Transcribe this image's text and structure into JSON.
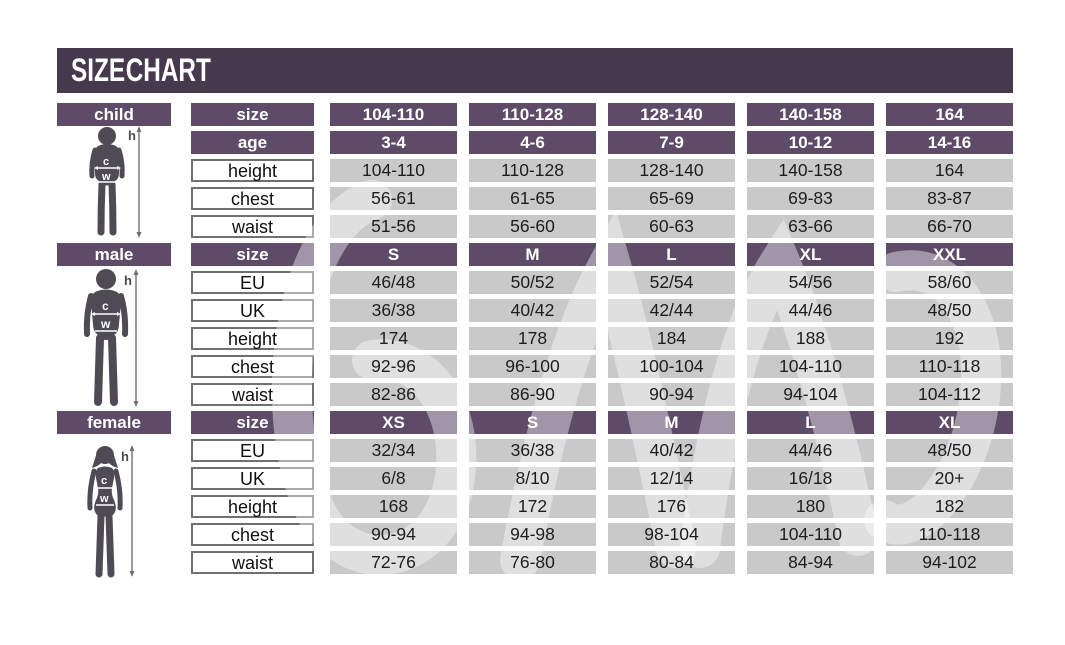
{
  "page_title": "SIZE CHART",
  "colors": {
    "title_bar": "#46394e",
    "header_purple": "#5e4b68",
    "value_cell_gray": "#c9c9c9",
    "label_border_gray": "#6f6f6f",
    "figure_gray": "#4f4b55",
    "background": "#ffffff"
  },
  "measure_marks": {
    "height": "h",
    "chest": "c",
    "waist": "w"
  },
  "sections": [
    {
      "label": "child",
      "rows": [
        {
          "label": "size",
          "header": true,
          "values": [
            "104-110",
            "110-128",
            "128-140",
            "140-158",
            "164"
          ]
        },
        {
          "label": "age",
          "header": true,
          "values": [
            "3-4",
            "4-6",
            "7-9",
            "10-12",
            "14-16"
          ]
        },
        {
          "label": "height",
          "header": false,
          "values": [
            "104-110",
            "110-128",
            "128-140",
            "140-158",
            "164"
          ]
        },
        {
          "label": "chest",
          "header": false,
          "values": [
            "56-61",
            "61-65",
            "65-69",
            "69-83",
            "83-87"
          ]
        },
        {
          "label": "waist",
          "header": false,
          "values": [
            "51-56",
            "56-60",
            "60-63",
            "63-66",
            "66-70"
          ]
        }
      ]
    },
    {
      "label": "male",
      "rows": [
        {
          "label": "size",
          "header": true,
          "values": [
            "S",
            "M",
            "L",
            "XL",
            "XXL"
          ]
        },
        {
          "label": "EU",
          "header": false,
          "values": [
            "46/48",
            "50/52",
            "52/54",
            "54/56",
            "58/60"
          ]
        },
        {
          "label": "UK",
          "header": false,
          "values": [
            "36/38",
            "40/42",
            "42/44",
            "44/46",
            "48/50"
          ]
        },
        {
          "label": "height",
          "header": false,
          "values": [
            "174",
            "178",
            "184",
            "188",
            "192"
          ]
        },
        {
          "label": "chest",
          "header": false,
          "values": [
            "92-96",
            "96-100",
            "100-104",
            "104-110",
            "110-118"
          ]
        },
        {
          "label": "waist",
          "header": false,
          "values": [
            "82-86",
            "86-90",
            "90-94",
            "94-104",
            "104-112"
          ]
        }
      ]
    },
    {
      "label": "female",
      "rows": [
        {
          "label": "size",
          "header": true,
          "values": [
            "XS",
            "S",
            "M",
            "L",
            "XL"
          ]
        },
        {
          "label": "EU",
          "header": false,
          "values": [
            "32/34",
            "36/38",
            "40/42",
            "44/46",
            "48/50"
          ]
        },
        {
          "label": "UK",
          "header": false,
          "values": [
            "6/8",
            "8/10",
            "12/14",
            "16/18",
            "20+"
          ]
        },
        {
          "label": "height",
          "header": false,
          "values": [
            "168",
            "172",
            "176",
            "180",
            "182"
          ]
        },
        {
          "label": "chest",
          "header": false,
          "values": [
            "90-94",
            "94-98",
            "98-104",
            "104-110",
            "110-118"
          ]
        },
        {
          "label": "waist",
          "header": false,
          "values": [
            "72-76",
            "76-80",
            "80-84",
            "84-94",
            "94-102"
          ]
        }
      ]
    }
  ],
  "chart_data": [
    {
      "type": "table",
      "title": "child",
      "columns": [
        "size",
        "104-110",
        "110-128",
        "128-140",
        "140-158",
        "164"
      ],
      "rows": [
        [
          "age",
          "3-4",
          "4-6",
          "7-9",
          "10-12",
          "14-16"
        ],
        [
          "height",
          "104-110",
          "110-128",
          "128-140",
          "140-158",
          "164"
        ],
        [
          "chest",
          "56-61",
          "61-65",
          "65-69",
          "69-83",
          "83-87"
        ],
        [
          "waist",
          "51-56",
          "56-60",
          "60-63",
          "63-66",
          "66-70"
        ]
      ]
    },
    {
      "type": "table",
      "title": "male",
      "columns": [
        "size",
        "S",
        "M",
        "L",
        "XL",
        "XXL"
      ],
      "rows": [
        [
          "EU",
          "46/48",
          "50/52",
          "52/54",
          "54/56",
          "58/60"
        ],
        [
          "UK",
          "36/38",
          "40/42",
          "42/44",
          "44/46",
          "48/50"
        ],
        [
          "height",
          "174",
          "178",
          "184",
          "188",
          "192"
        ],
        [
          "chest",
          "92-96",
          "96-100",
          "100-104",
          "104-110",
          "110-118"
        ],
        [
          "waist",
          "82-86",
          "86-90",
          "90-94",
          "94-104",
          "104-112"
        ]
      ]
    },
    {
      "type": "table",
      "title": "female",
      "columns": [
        "size",
        "XS",
        "S",
        "M",
        "L",
        "XL"
      ],
      "rows": [
        [
          "EU",
          "32/34",
          "36/38",
          "40/42",
          "44/46",
          "48/50"
        ],
        [
          "UK",
          "6/8",
          "8/10",
          "12/14",
          "16/18",
          "20+"
        ],
        [
          "height",
          "168",
          "172",
          "176",
          "180",
          "182"
        ],
        [
          "chest",
          "90-94",
          "94-98",
          "98-104",
          "104-110",
          "110-118"
        ],
        [
          "waist",
          "72-76",
          "76-80",
          "80-84",
          "84-94",
          "94-102"
        ]
      ]
    }
  ]
}
